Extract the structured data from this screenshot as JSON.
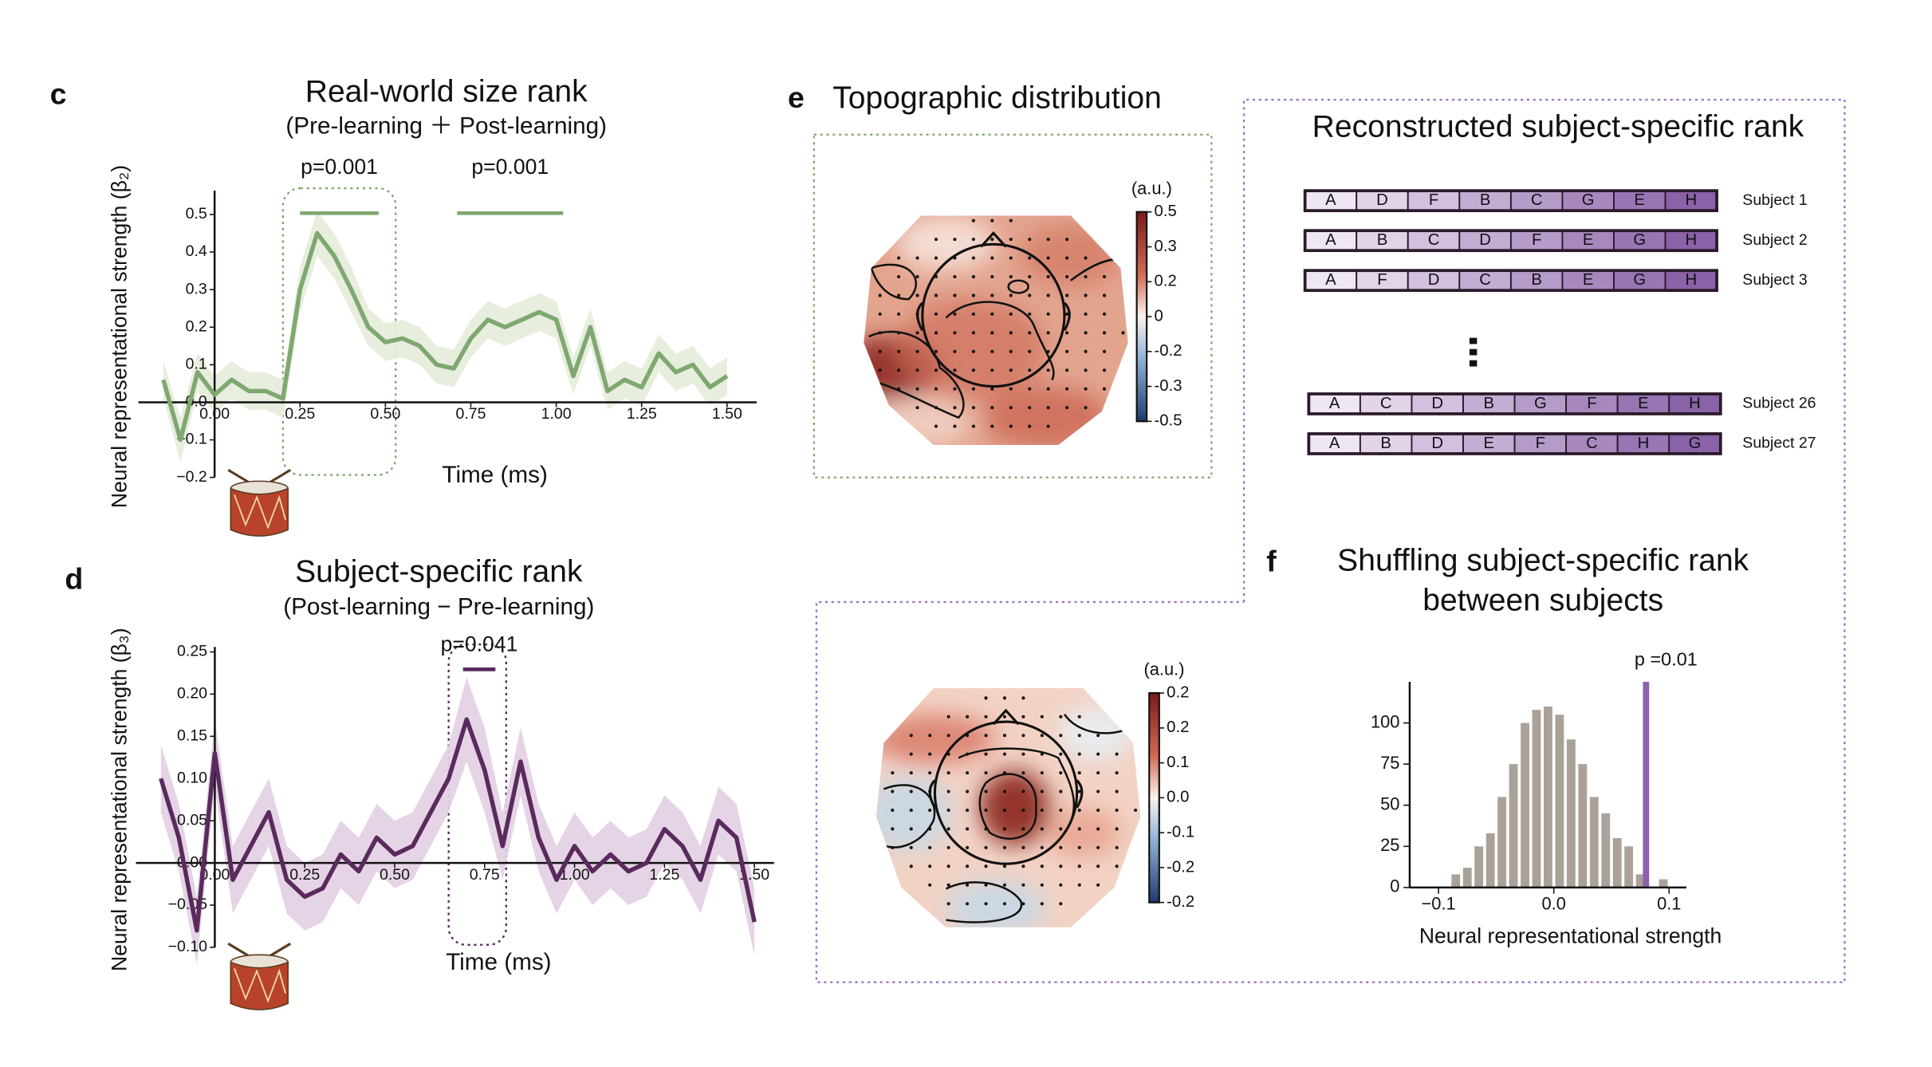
{
  "chart_data": [
    {
      "type": "line",
      "panel": "c",
      "title": "Real-world size rank",
      "subtitle": "(Pre-learning ＋ Post-learning)",
      "x_label": "Time (ms)",
      "y_label": "Neural representational strength (β₂)",
      "color": "#7fa870",
      "band_color": "#e4ecda",
      "x": [
        -0.15,
        -0.1,
        -0.05,
        0,
        0.05,
        0.1,
        0.15,
        0.2,
        0.25,
        0.3,
        0.35,
        0.4,
        0.45,
        0.5,
        0.55,
        0.6,
        0.65,
        0.7,
        0.75,
        0.8,
        0.85,
        0.9,
        0.95,
        1.0,
        1.05,
        1.1,
        1.15,
        1.2,
        1.25,
        1.3,
        1.35,
        1.4,
        1.45,
        1.5
      ],
      "values": [
        0.06,
        -0.1,
        0.08,
        0.02,
        0.06,
        0.03,
        0.03,
        0.01,
        0.3,
        0.45,
        0.39,
        0.3,
        0.2,
        0.16,
        0.17,
        0.15,
        0.1,
        0.09,
        0.17,
        0.22,
        0.2,
        0.22,
        0.24,
        0.22,
        0.07,
        0.2,
        0.03,
        0.06,
        0.04,
        0.13,
        0.08,
        0.1,
        0.04,
        0.07
      ],
      "error": [
        0.05,
        0.06,
        0.05,
        0.05,
        0.05,
        0.05,
        0.05,
        0.05,
        0.06,
        0.06,
        0.06,
        0.06,
        0.05,
        0.05,
        0.05,
        0.05,
        0.05,
        0.05,
        0.05,
        0.05,
        0.05,
        0.05,
        0.05,
        0.05,
        0.05,
        0.05,
        0.05,
        0.05,
        0.05,
        0.05,
        0.05,
        0.05,
        0.05,
        0.05
      ],
      "xlim": [
        -0.15,
        1.55
      ],
      "ylim": [
        -0.2,
        0.55
      ],
      "xticks": [
        {
          "value": 0,
          "label": "0.00"
        },
        0.25,
        {
          "value": 0.5,
          "label": "0.50"
        },
        0.75,
        {
          "value": 1,
          "label": "1.00"
        },
        1.25,
        {
          "value": 1.5,
          "label": "1.50"
        }
      ],
      "yticks": [
        {
          "value": -0.2,
          "label": "−0.2"
        },
        {
          "value": -0.1,
          "label": "−0.1"
        },
        {
          "value": 0,
          "label": "0.0"
        },
        0.1,
        0.2,
        0.3,
        0.4,
        0.5
      ],
      "significance": [
        {
          "label": "p=0.001",
          "start": 0.25,
          "end": 0.48
        },
        {
          "label": "p=0.001",
          "start": 0.71,
          "end": 1.02
        }
      ],
      "highlight_window": [
        0.2,
        0.53
      ]
    },
    {
      "type": "line",
      "panel": "d",
      "title": "Subject-specific rank",
      "subtitle": "(Post-learning − Pre-learning)",
      "x_label": "Time (ms)",
      "y_label": "Neural representational strength (β₃)",
      "color": "#5a2a5e",
      "band_color": "#e2cfe2",
      "x": [
        -0.15,
        -0.1,
        -0.05,
        0,
        0.05,
        0.1,
        0.15,
        0.2,
        0.25,
        0.3,
        0.35,
        0.4,
        0.45,
        0.5,
        0.55,
        0.6,
        0.65,
        0.7,
        0.75,
        0.8,
        0.85,
        0.9,
        0.95,
        1.0,
        1.05,
        1.1,
        1.15,
        1.2,
        1.25,
        1.3,
        1.35,
        1.4,
        1.45,
        1.5
      ],
      "values": [
        0.1,
        0.03,
        -0.08,
        0.13,
        -0.02,
        0.02,
        0.06,
        -0.02,
        -0.04,
        -0.03,
        0.01,
        -0.01,
        0.03,
        0.01,
        0.02,
        0.06,
        0.1,
        0.17,
        0.11,
        0.02,
        0.12,
        0.03,
        -0.02,
        0.02,
        -0.01,
        0.01,
        -0.01,
        0.0,
        0.04,
        0.02,
        -0.02,
        0.05,
        0.03,
        -0.07
      ],
      "error": [
        0.04,
        0.04,
        0.04,
        0.04,
        0.04,
        0.04,
        0.04,
        0.04,
        0.04,
        0.04,
        0.04,
        0.04,
        0.04,
        0.04,
        0.04,
        0.04,
        0.04,
        0.05,
        0.05,
        0.04,
        0.04,
        0.04,
        0.04,
        0.04,
        0.04,
        0.04,
        0.04,
        0.04,
        0.04,
        0.04,
        0.04,
        0.04,
        0.04,
        0.04
      ],
      "xlim": [
        -0.15,
        1.52
      ],
      "ylim": [
        -0.1,
        0.25
      ],
      "xticks": [
        {
          "value": 0,
          "label": "0.00"
        },
        0.25,
        {
          "value": 0.5,
          "label": "0.50"
        },
        0.75,
        {
          "value": 1,
          "label": "1.00"
        },
        1.25,
        {
          "value": 1.5,
          "label": "1.50"
        }
      ],
      "yticks": [
        {
          "value": -0.1,
          "label": "−0.10"
        },
        {
          "value": -0.05,
          "label": "−0.05"
        },
        {
          "value": 0,
          "label": "0.00"
        },
        0.05,
        {
          "value": 0.1,
          "label": "0.10"
        },
        0.15,
        {
          "value": 0.2,
          "label": "0.20"
        },
        0.25
      ],
      "significance": [
        {
          "label": "p=0.041",
          "start": 0.69,
          "end": 0.78
        }
      ],
      "highlight_window": [
        0.65,
        0.81
      ]
    },
    {
      "type": "histogram",
      "panel": "f",
      "title_lines": [
        "Shuffling subject-specific rank",
        "between subjects"
      ],
      "x_label": "Neural representational strength",
      "color": "#aaa199",
      "bins": [
        -0.09,
        -0.08,
        -0.07,
        -0.06,
        -0.05,
        -0.04,
        -0.03,
        -0.02,
        -0.01,
        0,
        0.01,
        0.02,
        0.03,
        0.04,
        0.05,
        0.06,
        0.07,
        0.08,
        0.09,
        0.1
      ],
      "counts": [
        8,
        12,
        25,
        33,
        55,
        75,
        100,
        108,
        110,
        105,
        90,
        75,
        55,
        45,
        30,
        25,
        8,
        0,
        5
      ],
      "observed": 0.08,
      "observed_label": "p =0.01",
      "observed_color": "#8a62ad",
      "xlim": [
        -0.125,
        0.115
      ],
      "ylim": [
        0,
        125
      ],
      "xticks": [
        {
          "value": -0.1,
          "label": "−0.1"
        },
        {
          "value": 0,
          "label": "0.0"
        },
        0.1
      ],
      "yticks": [
        0,
        25,
        50,
        75,
        100
      ]
    }
  ],
  "topography": {
    "panel": "e",
    "title": "Topographic distribution",
    "maps": [
      {
        "unit": "(a.u.)",
        "colorbar_ticks": [
          "0.5",
          "0.3",
          "0.2",
          "0",
          "-0.2",
          "-0.3",
          "-0.5"
        ]
      },
      {
        "unit": "(a.u.)",
        "colorbar_ticks": [
          "0.2",
          "0.2",
          "0.1",
          "0.0",
          "-0.1",
          "-0.2",
          "-0.2"
        ]
      }
    ]
  },
  "rank": {
    "title": "Reconstructed subject-specific rank",
    "rows": [
      {
        "subject": "Subject 1",
        "order": [
          "A",
          "D",
          "F",
          "B",
          "C",
          "G",
          "E",
          "H"
        ]
      },
      {
        "subject": "Subject 2",
        "order": [
          "A",
          "B",
          "C",
          "D",
          "F",
          "E",
          "G",
          "H"
        ]
      },
      {
        "subject": "Subject 3",
        "order": [
          "A",
          "F",
          "D",
          "C",
          "B",
          "E",
          "G",
          "H"
        ]
      },
      {
        "subject": "Subject 26",
        "order": [
          "A",
          "C",
          "D",
          "B",
          "G",
          "F",
          "E",
          "H"
        ]
      },
      {
        "subject": "Subject 27",
        "order": [
          "A",
          "B",
          "D",
          "E",
          "F",
          "C",
          "H",
          "G"
        ]
      }
    ]
  }
}
